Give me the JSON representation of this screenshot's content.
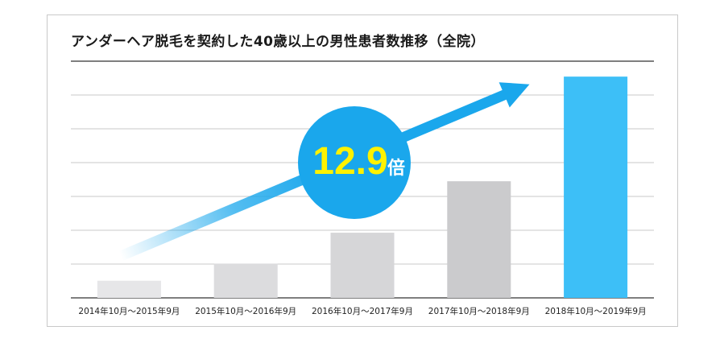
{
  "chart_data": {
    "type": "bar",
    "title": "アンダーヘア脱毛を契約した40歳以上の男性患者数推移（全院）",
    "categories": [
      "2014年10月～2015年9月",
      "2015年10月～2016年9月",
      "2016年10月～2017年9月",
      "2017年10月～2018年9月",
      "2018年10月～2019年9月"
    ],
    "values": [
      1.0,
      2.0,
      3.8,
      6.8,
      12.9
    ],
    "ylim": [
      0,
      13.8
    ],
    "grid": true,
    "colors": [
      "#e6e6e8",
      "#dcdcde",
      "#d6d6d8",
      "#cbcbcd",
      "#3dbff7"
    ],
    "arrow_color": "#1aa7ec",
    "badge": {
      "number": "12.9",
      "unit": "倍",
      "color": "#1aa7ec"
    }
  }
}
